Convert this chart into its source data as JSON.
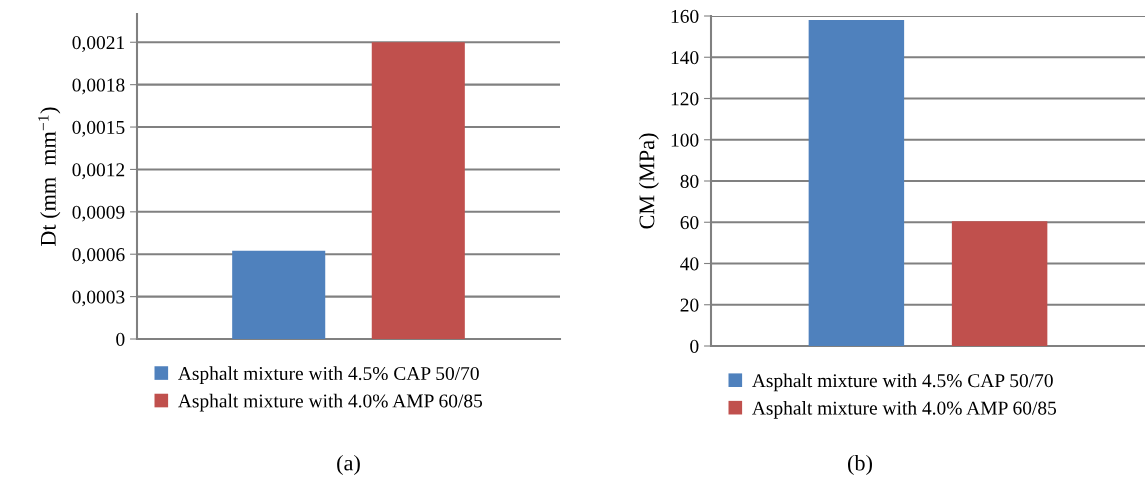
{
  "chart_data": [
    {
      "type": "bar",
      "ylabel": "Dt (mm  mm$^{−1}$)",
      "categories": [
        null
      ],
      "series": [
        {
          "name": "Asphalt mixture with 4.5% CAP 50/70",
          "color": "#4f81bd",
          "values": [
            0.000625
          ]
        },
        {
          "name": "Asphalt mixture with 4.0% AMP 60/85",
          "color": "#c0504d",
          "values": [
            0.0021
          ]
        }
      ],
      "ylim": [
        0,
        0.0023
      ],
      "yticks": [
        0,
        {
          "value": 0.0003,
          "label": "0,0003"
        },
        {
          "value": 0.0006,
          "label": "0,0006"
        },
        {
          "value": 0.0009,
          "label": "0,0009"
        },
        {
          "value": 0.0012,
          "label": "0,0012"
        },
        {
          "value": 0.0015,
          "label": "0,0015"
        },
        {
          "value": 0.0018,
          "label": "0,0018"
        },
        {
          "value": 0.0021,
          "label": "0,0021"
        }
      ],
      "grid": "y",
      "legend": "bottom",
      "annotations": [
        "(a)"
      ]
    },
    {
      "type": "bar",
      "ylabel": "CM (MPa)",
      "categories": [
        null
      ],
      "series": [
        {
          "name": "Asphalt mixture with 4.5% CAP 50/70",
          "color": "#4f81bd",
          "values": [
            158
          ]
        },
        {
          "name": "Asphalt mixture with 4.0% AMP 60/85",
          "color": "#c0504d",
          "values": [
            60.5
          ]
        }
      ],
      "ylim": [
        0,
        160
      ],
      "yticks": [
        0,
        20,
        40,
        60,
        80,
        100,
        120,
        140,
        160
      ],
      "grid": "y",
      "legend": "bottom",
      "annotations": [
        "(b)"
      ]
    }
  ]
}
